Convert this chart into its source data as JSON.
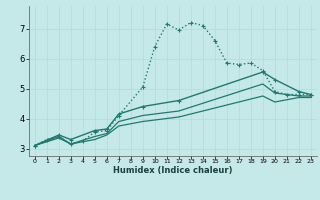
{
  "xlabel": "Humidex (Indice chaleur)",
  "background_color": "#c5e8e8",
  "grid_color": "#e8c8c8",
  "line_color": "#1e7a70",
  "xlim": [
    -0.5,
    23.5
  ],
  "ylim": [
    2.75,
    7.75
  ],
  "xticks": [
    0,
    1,
    2,
    3,
    4,
    5,
    6,
    7,
    8,
    9,
    10,
    11,
    12,
    13,
    14,
    15,
    16,
    17,
    18,
    19,
    20,
    21,
    22,
    23
  ],
  "yticks": [
    3,
    4,
    5,
    6,
    7
  ],
  "line1_x": [
    0,
    1,
    2,
    3,
    4,
    5,
    6,
    7,
    9,
    10,
    11,
    12,
    13,
    14,
    15,
    16,
    17,
    18,
    19,
    20,
    21,
    22,
    23
  ],
  "line1_y": [
    3.1,
    3.3,
    3.4,
    3.15,
    3.25,
    3.55,
    3.6,
    4.1,
    5.05,
    6.4,
    7.15,
    6.95,
    7.2,
    7.1,
    6.6,
    5.85,
    5.8,
    5.85,
    5.6,
    4.9,
    4.8,
    4.8,
    4.8
  ],
  "line2_x": [
    0,
    2,
    3,
    5,
    6,
    7,
    9,
    12,
    19,
    20,
    22,
    23
  ],
  "line2_y": [
    3.1,
    3.45,
    3.3,
    3.6,
    3.65,
    4.15,
    4.4,
    4.6,
    5.55,
    5.3,
    4.9,
    4.8
  ],
  "line3_x": [
    0,
    2,
    3,
    5,
    6,
    7,
    9,
    12,
    19,
    20,
    22,
    23
  ],
  "line3_y": [
    3.1,
    3.4,
    3.15,
    3.4,
    3.5,
    3.9,
    4.1,
    4.25,
    5.15,
    4.85,
    4.75,
    4.75
  ],
  "line4_x": [
    0,
    2,
    3,
    5,
    6,
    7,
    9,
    12,
    19,
    20,
    22,
    23
  ],
  "line4_y": [
    3.1,
    3.35,
    3.15,
    3.3,
    3.45,
    3.75,
    3.9,
    4.05,
    4.75,
    4.55,
    4.7,
    4.7
  ]
}
